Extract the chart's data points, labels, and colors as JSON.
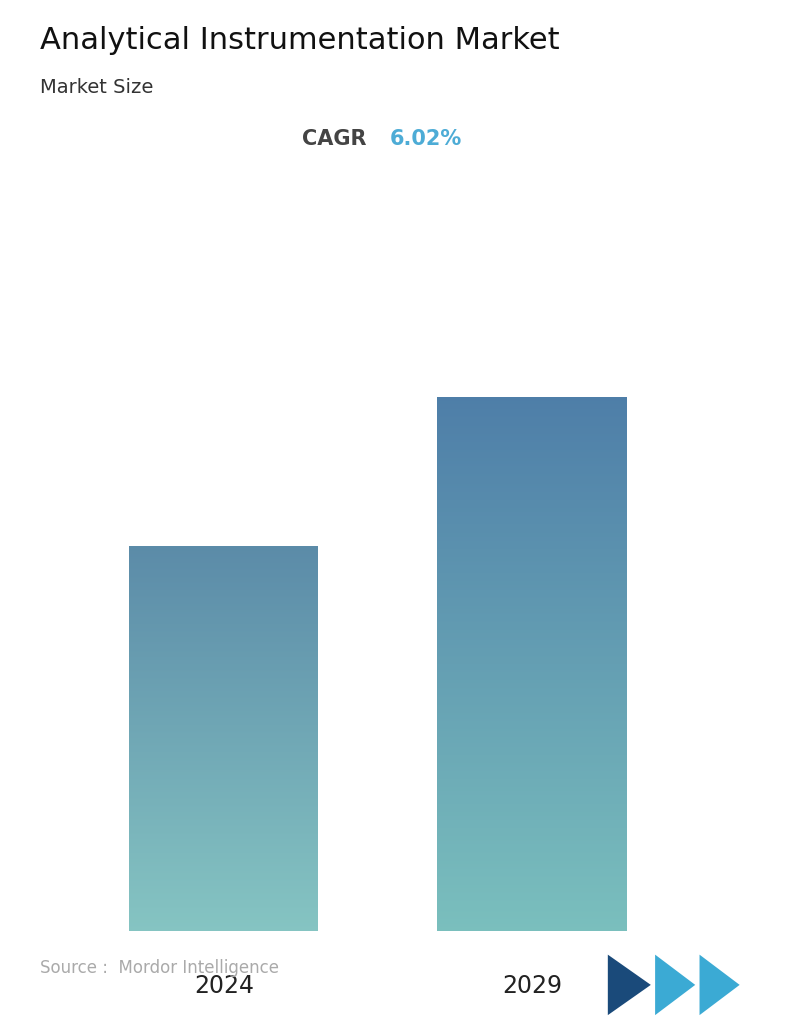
{
  "title": "Analytical Instrumentation Market",
  "subtitle": "Market Size",
  "cagr_label": "CAGR",
  "cagr_value": "6.02%",
  "cagr_label_color": "#444444",
  "cagr_value_color": "#4DACD6",
  "categories": [
    "2024",
    "2029"
  ],
  "bar_values": [
    0.62,
    0.86
  ],
  "bar_top_color": [
    "#5B8BA8",
    "#4E7EA8"
  ],
  "bar_bottom_color": [
    "#85C4C2",
    "#7ABFBD"
  ],
  "source_text": "Source :  Mordor Intelligence",
  "source_color": "#aaaaaa",
  "background_color": "#ffffff",
  "title_fontsize": 22,
  "subtitle_fontsize": 14,
  "cagr_fontsize": 15,
  "tick_fontsize": 17,
  "source_fontsize": 12,
  "bar_positions": [
    0.24,
    0.68
  ],
  "bar_width": 0.27
}
